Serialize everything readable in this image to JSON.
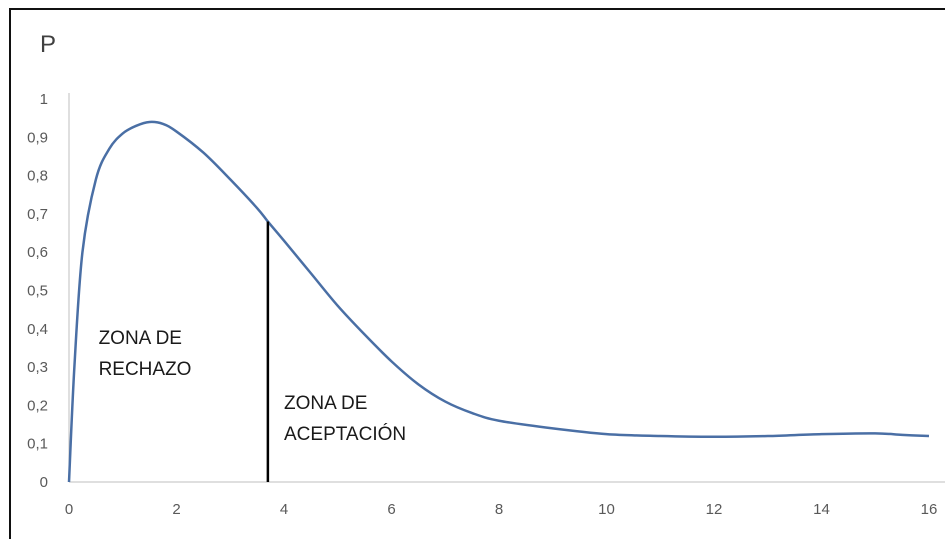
{
  "chart_data": {
    "type": "line",
    "title": "",
    "xlabel": "",
    "ylabel": "P",
    "xlim": [
      0,
      16
    ],
    "ylim": [
      0,
      1
    ],
    "x_ticks": [
      "0",
      "2",
      "4",
      "6",
      "8",
      "10",
      "12",
      "14",
      "16"
    ],
    "y_ticks": [
      "0",
      "0,1",
      "0,2",
      "0,3",
      "0,4",
      "0,5",
      "0,6",
      "0,7",
      "0,8",
      "0,9",
      "1"
    ],
    "grid": false,
    "legend": "none",
    "series": [
      {
        "color": "#4a6fa5",
        "x": [
          0,
          0.1,
          0.25,
          0.5,
          0.75,
          1.0,
          1.25,
          1.5,
          1.75,
          2.0,
          2.5,
          3.0,
          3.5,
          3.7,
          4.0,
          4.5,
          5.0,
          5.5,
          6.0,
          6.5,
          7.0,
          7.5,
          8.0,
          9.0,
          10.0,
          11.0,
          12.0,
          13.0,
          14.0,
          15.0,
          15.5,
          16.0
        ],
        "y": [
          0,
          0.3,
          0.6,
          0.79,
          0.87,
          0.91,
          0.93,
          0.94,
          0.935,
          0.915,
          0.86,
          0.79,
          0.715,
          0.68,
          0.63,
          0.545,
          0.46,
          0.385,
          0.315,
          0.255,
          0.21,
          0.18,
          0.16,
          0.14,
          0.125,
          0.12,
          0.118,
          0.12,
          0.125,
          0.127,
          0.123,
          0.12
        ]
      }
    ],
    "threshold": {
      "x": 3.7,
      "y": 0.68,
      "color": "#000000"
    },
    "annotations": [
      {
        "lines": [
          "ZONA DE",
          "RECHAZO"
        ],
        "x": 0.55,
        "y": 0.36
      },
      {
        "lines": [
          "ZONA DE",
          "ACEPTACIÓN"
        ],
        "x": 4.0,
        "y": 0.19
      }
    ]
  }
}
